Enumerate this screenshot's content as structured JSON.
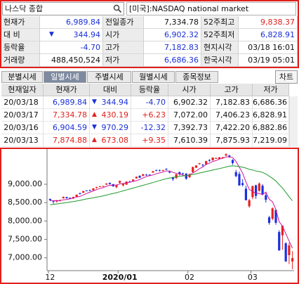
{
  "header": {
    "search": "나스닥 종합",
    "market": "[미국]:NASDAQ national market"
  },
  "quote": {
    "change_arrow": "▼",
    "rows": [
      [
        "현재가",
        "6,989.84",
        "전일종가",
        "7,334.78",
        "52주최고",
        "9,838.37"
      ],
      [
        "대 비",
        "344.94",
        "시가",
        "6,902.32",
        "52주최저",
        "6,828.91"
      ],
      [
        "등락율",
        "-4.70",
        "고가",
        "7,182.83",
        "현지시각",
        "03/18 16:01"
      ],
      [
        "거래량",
        "488,450,524",
        "저가",
        "6,686.36",
        "한국시각",
        "03/19 05:01"
      ]
    ]
  },
  "tabs": [
    "분별시세",
    "일별시세",
    "주별시세",
    "월별시세",
    "종목정보"
  ],
  "chart_button": "차트",
  "table": {
    "columns": [
      "현재일자",
      "현재가",
      "대비",
      "등락율",
      "시가",
      "고가",
      "저가"
    ],
    "rows": [
      [
        "20/03/18",
        "6,989.84",
        "▼",
        "344.94",
        "-4.70",
        "6,902.32",
        "7,182.83",
        "6,686.36"
      ],
      [
        "20/03/17",
        "7,334.78",
        "▲",
        "430.19",
        "+6.23",
        "7,072.00",
        "7,406.23",
        "6,828.91"
      ],
      [
        "20/03/16",
        "6,904.59",
        "▼",
        "970.29",
        "-12.32",
        "7,392.73",
        "7,422.20",
        "6,882.86"
      ],
      [
        "20/03/13",
        "7,874.88",
        "▲",
        "673.08",
        "+9.35",
        "7,610.39",
        "7,875.93",
        "7,219.09"
      ]
    ]
  },
  "chart_data": {
    "type": "candlestick",
    "categories": [
      "12",
      null,
      null,
      null,
      null,
      null,
      null,
      null,
      null,
      null,
      null,
      null,
      null,
      null,
      null,
      null,
      null,
      null,
      null,
      null,
      null,
      "2020/01",
      null,
      null,
      null,
      null,
      null,
      null,
      null,
      null,
      null,
      null,
      null,
      null,
      null,
      null,
      null,
      null,
      null,
      null,
      null,
      null,
      "02",
      null,
      null,
      null,
      null,
      null,
      null,
      null,
      null,
      null,
      null,
      null,
      null,
      null,
      null,
      null,
      null,
      null,
      null,
      "03",
      null,
      null,
      null,
      null,
      null,
      null,
      null,
      null,
      null,
      null,
      null,
      null
    ],
    "open": [
      8600,
      8540,
      8530,
      8550,
      8620,
      8650,
      8630,
      8620,
      8660,
      8760,
      8770,
      8830,
      8840,
      8840,
      8920,
      8940,
      8950,
      8990,
      9040,
      9000,
      8920,
      9040,
      8970,
      8990,
      9070,
      9090,
      9160,
      9230,
      9230,
      9260,
      9260,
      9320,
      9390,
      9380,
      9370,
      9420,
      9340,
      9190,
      9170,
      9330,
      9300,
      9290,
      9190,
      9330,
      9450,
      9550,
      9530,
      9540,
      9660,
      9650,
      9690,
      9680,
      9720,
      9780,
      9780,
      9660,
      9330,
      9280,
      9030,
      8880,
      8400,
      8650,
      8970,
      8820,
      8960,
      8700,
      8100,
      8060,
      8300,
      7700,
      7610.39,
      7392.73,
      7072.0,
      6902.32
    ],
    "high": [
      8610,
      8545,
      8570,
      8580,
      8665,
      8660,
      8640,
      8660,
      8720,
      8765,
      8820,
      8835,
      8850,
      8890,
      8930,
      8950,
      8960,
      9025,
      9045,
      9010,
      8975,
      9095,
      9030,
      9080,
      9095,
      9135,
      9210,
      9240,
      9275,
      9280,
      9270,
      9360,
      9395,
      9400,
      9395,
      9430,
      9350,
      9200,
      9280,
      9340,
      9310,
      9300,
      9290,
      9480,
      9520,
      9580,
      9550,
      9640,
      9680,
      9730,
      9730,
      9740,
      9745,
      9840,
      9800,
      9680,
      9390,
      9340,
      9140,
      8960,
      8600,
      8960,
      8990,
      9050,
      9000,
      8760,
      8140,
      8370,
      8330,
      7750,
      7875.93,
      7422.2,
      7406.23,
      7182.83
    ],
    "low": [
      8540,
      8470,
      8500,
      8530,
      8610,
      8605,
      8590,
      8600,
      8650,
      8720,
      8760,
      8810,
      8810,
      8830,
      8880,
      8920,
      8930,
      8985,
      8990,
      8930,
      8890,
      9020,
      8940,
      8980,
      9040,
      9080,
      9150,
      9170,
      9210,
      9230,
      9240,
      9310,
      9350,
      9350,
      9350,
      9380,
      9300,
      9090,
      9140,
      9240,
      9260,
      9120,
      9170,
      9310,
      9440,
      9530,
      9480,
      9520,
      9610,
      9640,
      9690,
      9680,
      9700,
      9770,
      9720,
      9530,
      9190,
      8960,
      8940,
      8560,
      8360,
      8590,
      8600,
      8800,
      8700,
      8500,
      7900,
      8020,
      7900,
      7190,
      7219.09,
      6882.86,
      6828.91,
      6686.36
    ],
    "close": [
      8568,
      8521,
      8567,
      8570,
      8657,
      8621,
      8616,
      8654,
      8717,
      8735,
      8814,
      8823,
      8827,
      8887,
      8925,
      8945,
      8952,
      9022,
      9007,
      8945,
      8973,
      9092,
      9020,
      9071,
      9068,
      9129,
      9203,
      9178,
      9273,
      9251,
      9258,
      9357,
      9388,
      9370,
      9383,
      9402,
      9314,
      9139,
      9269,
      9275,
      9298,
      9150,
      9273,
      9467,
      9508,
      9572,
      9520,
      9628,
      9638,
      9725,
      9711,
      9731,
      9732,
      9817,
      9750,
      9576,
      9221,
      8966,
      8980,
      8566,
      8567,
      8952,
      8684,
      9018,
      8738,
      8575,
      7950,
      8344,
      7952,
      7201,
      7874.88,
      6904.59,
      7334.78,
      6989.84
    ],
    "up_color": "#e8201c",
    "down_color": "#1c2fe0",
    "series": [
      {
        "color": "#d0109a",
        "values": [
          8560,
          8555,
          8550,
          8555,
          8577,
          8587,
          8606,
          8623,
          8653,
          8669,
          8707,
          8749,
          8783,
          8817,
          8855,
          8883,
          8907,
          8946,
          8970,
          8978,
          8980,
          9008,
          9019,
          9040,
          9056,
          9076,
          9098,
          9130,
          9171,
          9207,
          9233,
          9253,
          9285,
          9309,
          9331,
          9360,
          9363,
          9322,
          9296,
          9280,
          9250,
          9227,
          9253,
          9307,
          9359,
          9424,
          9468,
          9539,
          9573,
          9617,
          9644,
          9684,
          9707,
          9742,
          9748,
          9725,
          9619,
          9462,
          9299,
          9062,
          8860,
          8806,
          8750,
          8753,
          8712,
          8787,
          8593,
          8522,
          8312,
          7980,
          7864,
          7655,
          7454,
          7263
        ]
      },
      {
        "color": "#1f9a2a",
        "values": [
          8440,
          8455,
          8465,
          8475,
          8490,
          8500,
          8515,
          8530,
          8545,
          8560,
          8580,
          8600,
          8615,
          8630,
          8650,
          8665,
          8685,
          8705,
          8730,
          8750,
          8770,
          8795,
          8820,
          8845,
          8870,
          8895,
          8920,
          8945,
          8970,
          8995,
          9020,
          9045,
          9075,
          9100,
          9125,
          9150,
          9170,
          9185,
          9200,
          9215,
          9225,
          9235,
          9245,
          9265,
          9285,
          9305,
          9325,
          9345,
          9365,
          9385,
          9405,
          9425,
          9445,
          9470,
          9490,
          9500,
          9495,
          9480,
          9465,
          9440,
          9405,
          9390,
          9360,
          9345,
          9320,
          9280,
          9220,
          9160,
          9090,
          8990,
          8900,
          8780,
          8660,
          8550
        ]
      }
    ],
    "ylim": [
      6650,
      9900
    ],
    "yticks": [
      {
        "value": 7000,
        "label": "7,000.00"
      },
      {
        "value": 7500,
        "label": "7,500.00"
      },
      {
        "value": 8000,
        "label": "8,000.00"
      },
      {
        "value": 8500,
        "label": "8,500.00"
      },
      {
        "value": 9000,
        "label": "9,000.00"
      }
    ]
  }
}
